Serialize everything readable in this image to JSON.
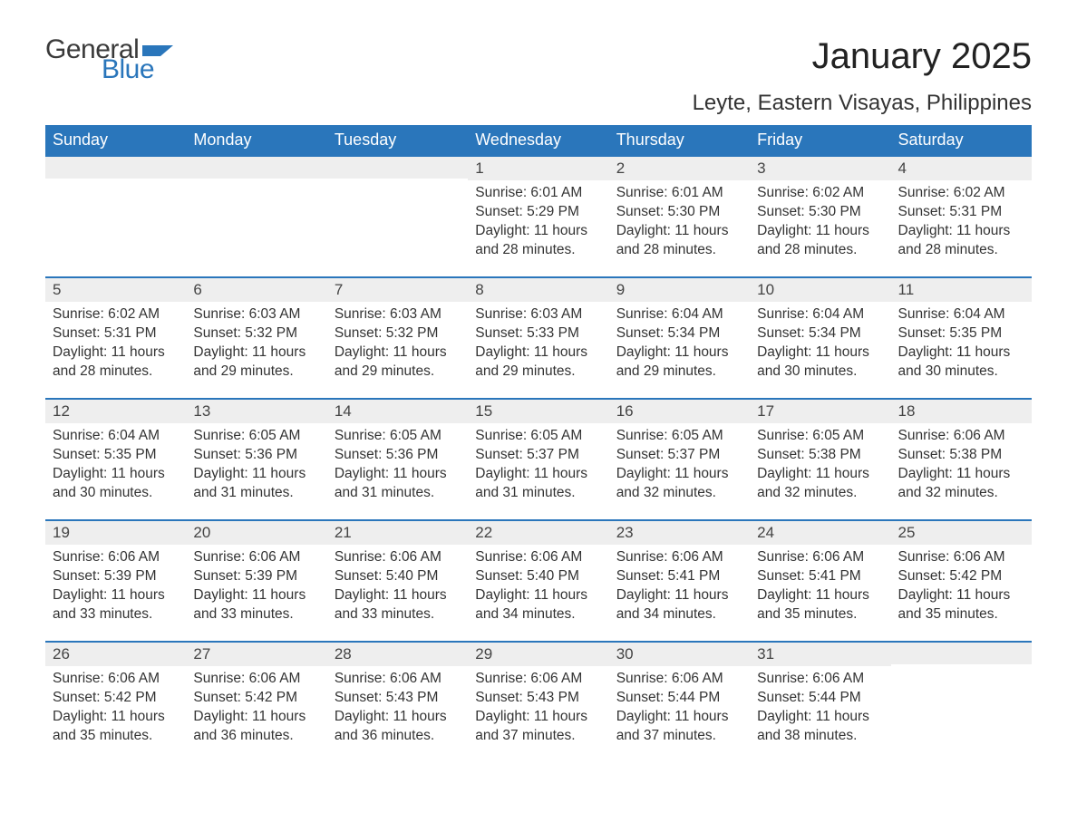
{
  "logo": {
    "text_general": "General",
    "text_blue": "Blue",
    "flag_color": "#2a76bb"
  },
  "title": "January 2025",
  "subtitle": "Leyte, Eastern Visayas, Philippines",
  "colors": {
    "header_bg": "#2a76bb",
    "header_text": "#ffffff",
    "daynum_bg": "#eeeeee",
    "daynum_border": "#2a76bb",
    "body_bg": "#ffffff",
    "text": "#333333"
  },
  "typography": {
    "title_fontsize": 40,
    "subtitle_fontsize": 24,
    "weekday_fontsize": 18,
    "daynum_fontsize": 17,
    "body_fontsize": 15.5
  },
  "weekdays": [
    "Sunday",
    "Monday",
    "Tuesday",
    "Wednesday",
    "Thursday",
    "Friday",
    "Saturday"
  ],
  "weeks": [
    [
      null,
      null,
      null,
      {
        "num": "1",
        "sunrise": "Sunrise: 6:01 AM",
        "sunset": "Sunset: 5:29 PM",
        "daylight": "Daylight: 11 hours and 28 minutes."
      },
      {
        "num": "2",
        "sunrise": "Sunrise: 6:01 AM",
        "sunset": "Sunset: 5:30 PM",
        "daylight": "Daylight: 11 hours and 28 minutes."
      },
      {
        "num": "3",
        "sunrise": "Sunrise: 6:02 AM",
        "sunset": "Sunset: 5:30 PM",
        "daylight": "Daylight: 11 hours and 28 minutes."
      },
      {
        "num": "4",
        "sunrise": "Sunrise: 6:02 AM",
        "sunset": "Sunset: 5:31 PM",
        "daylight": "Daylight: 11 hours and 28 minutes."
      }
    ],
    [
      {
        "num": "5",
        "sunrise": "Sunrise: 6:02 AM",
        "sunset": "Sunset: 5:31 PM",
        "daylight": "Daylight: 11 hours and 28 minutes."
      },
      {
        "num": "6",
        "sunrise": "Sunrise: 6:03 AM",
        "sunset": "Sunset: 5:32 PM",
        "daylight": "Daylight: 11 hours and 29 minutes."
      },
      {
        "num": "7",
        "sunrise": "Sunrise: 6:03 AM",
        "sunset": "Sunset: 5:32 PM",
        "daylight": "Daylight: 11 hours and 29 minutes."
      },
      {
        "num": "8",
        "sunrise": "Sunrise: 6:03 AM",
        "sunset": "Sunset: 5:33 PM",
        "daylight": "Daylight: 11 hours and 29 minutes."
      },
      {
        "num": "9",
        "sunrise": "Sunrise: 6:04 AM",
        "sunset": "Sunset: 5:34 PM",
        "daylight": "Daylight: 11 hours and 29 minutes."
      },
      {
        "num": "10",
        "sunrise": "Sunrise: 6:04 AM",
        "sunset": "Sunset: 5:34 PM",
        "daylight": "Daylight: 11 hours and 30 minutes."
      },
      {
        "num": "11",
        "sunrise": "Sunrise: 6:04 AM",
        "sunset": "Sunset: 5:35 PM",
        "daylight": "Daylight: 11 hours and 30 minutes."
      }
    ],
    [
      {
        "num": "12",
        "sunrise": "Sunrise: 6:04 AM",
        "sunset": "Sunset: 5:35 PM",
        "daylight": "Daylight: 11 hours and 30 minutes."
      },
      {
        "num": "13",
        "sunrise": "Sunrise: 6:05 AM",
        "sunset": "Sunset: 5:36 PM",
        "daylight": "Daylight: 11 hours and 31 minutes."
      },
      {
        "num": "14",
        "sunrise": "Sunrise: 6:05 AM",
        "sunset": "Sunset: 5:36 PM",
        "daylight": "Daylight: 11 hours and 31 minutes."
      },
      {
        "num": "15",
        "sunrise": "Sunrise: 6:05 AM",
        "sunset": "Sunset: 5:37 PM",
        "daylight": "Daylight: 11 hours and 31 minutes."
      },
      {
        "num": "16",
        "sunrise": "Sunrise: 6:05 AM",
        "sunset": "Sunset: 5:37 PM",
        "daylight": "Daylight: 11 hours and 32 minutes."
      },
      {
        "num": "17",
        "sunrise": "Sunrise: 6:05 AM",
        "sunset": "Sunset: 5:38 PM",
        "daylight": "Daylight: 11 hours and 32 minutes."
      },
      {
        "num": "18",
        "sunrise": "Sunrise: 6:06 AM",
        "sunset": "Sunset: 5:38 PM",
        "daylight": "Daylight: 11 hours and 32 minutes."
      }
    ],
    [
      {
        "num": "19",
        "sunrise": "Sunrise: 6:06 AM",
        "sunset": "Sunset: 5:39 PM",
        "daylight": "Daylight: 11 hours and 33 minutes."
      },
      {
        "num": "20",
        "sunrise": "Sunrise: 6:06 AM",
        "sunset": "Sunset: 5:39 PM",
        "daylight": "Daylight: 11 hours and 33 minutes."
      },
      {
        "num": "21",
        "sunrise": "Sunrise: 6:06 AM",
        "sunset": "Sunset: 5:40 PM",
        "daylight": "Daylight: 11 hours and 33 minutes."
      },
      {
        "num": "22",
        "sunrise": "Sunrise: 6:06 AM",
        "sunset": "Sunset: 5:40 PM",
        "daylight": "Daylight: 11 hours and 34 minutes."
      },
      {
        "num": "23",
        "sunrise": "Sunrise: 6:06 AM",
        "sunset": "Sunset: 5:41 PM",
        "daylight": "Daylight: 11 hours and 34 minutes."
      },
      {
        "num": "24",
        "sunrise": "Sunrise: 6:06 AM",
        "sunset": "Sunset: 5:41 PM",
        "daylight": "Daylight: 11 hours and 35 minutes."
      },
      {
        "num": "25",
        "sunrise": "Sunrise: 6:06 AM",
        "sunset": "Sunset: 5:42 PM",
        "daylight": "Daylight: 11 hours and 35 minutes."
      }
    ],
    [
      {
        "num": "26",
        "sunrise": "Sunrise: 6:06 AM",
        "sunset": "Sunset: 5:42 PM",
        "daylight": "Daylight: 11 hours and 35 minutes."
      },
      {
        "num": "27",
        "sunrise": "Sunrise: 6:06 AM",
        "sunset": "Sunset: 5:42 PM",
        "daylight": "Daylight: 11 hours and 36 minutes."
      },
      {
        "num": "28",
        "sunrise": "Sunrise: 6:06 AM",
        "sunset": "Sunset: 5:43 PM",
        "daylight": "Daylight: 11 hours and 36 minutes."
      },
      {
        "num": "29",
        "sunrise": "Sunrise: 6:06 AM",
        "sunset": "Sunset: 5:43 PM",
        "daylight": "Daylight: 11 hours and 37 minutes."
      },
      {
        "num": "30",
        "sunrise": "Sunrise: 6:06 AM",
        "sunset": "Sunset: 5:44 PM",
        "daylight": "Daylight: 11 hours and 37 minutes."
      },
      {
        "num": "31",
        "sunrise": "Sunrise: 6:06 AM",
        "sunset": "Sunset: 5:44 PM",
        "daylight": "Daylight: 11 hours and 38 minutes."
      },
      null
    ]
  ]
}
